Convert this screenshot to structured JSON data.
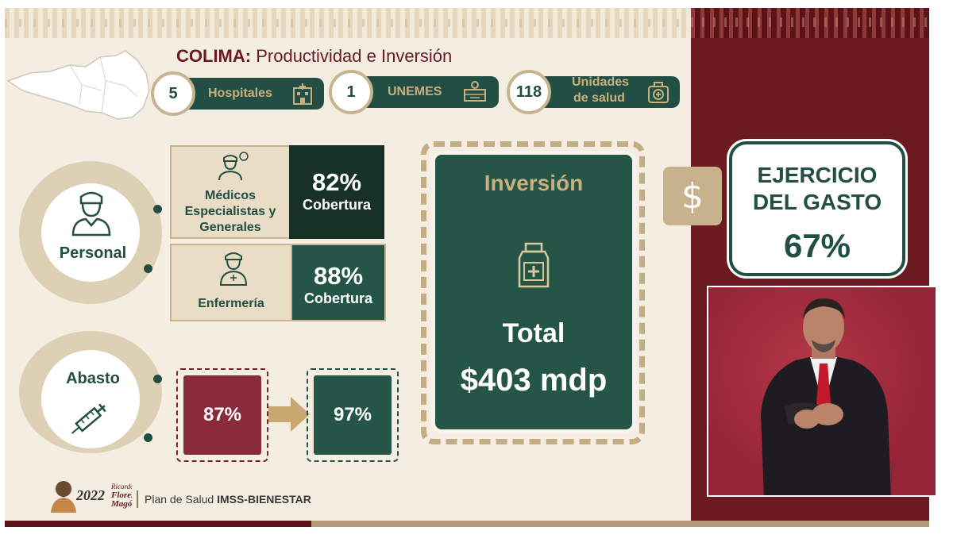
{
  "title": {
    "state": "COLIMA:",
    "subtitle": "Productividad e Inversión"
  },
  "stats": [
    {
      "value": "5",
      "label": "Hospitales",
      "icon": "hospital-icon"
    },
    {
      "value": "1",
      "label": "UNEMES",
      "icon": "unemes-icon"
    },
    {
      "value": "118",
      "label_line1": "Unidades",
      "label_line2": "de salud",
      "icon": "health-unit-icon"
    }
  ],
  "personal": {
    "label": "Personal",
    "medicos": {
      "label_line1": "Médicos",
      "label_line2": "Especialistas y",
      "label_line3": "Generales",
      "pct": "82%",
      "cobertura": "Cobertura"
    },
    "enfermeria": {
      "label": "Enfermería",
      "pct": "88%",
      "cobertura": "Cobertura"
    }
  },
  "abasto": {
    "label": "Abasto",
    "before": "87%",
    "after": "97%"
  },
  "inversion": {
    "title": "Inversión",
    "total_label": "Total",
    "amount": "$403 mdp"
  },
  "gasto": {
    "symbol": "$",
    "line1": "EJERCICIO",
    "line2": "DEL GASTO",
    "pct": "67%"
  },
  "footer": {
    "logo_year": "2022",
    "logo_name_line1": "Ricardo",
    "logo_name_line2": "Flores",
    "logo_name_line3": "Magón",
    "text_prefix": "Plan de Salud",
    "text_bold": "IMSS-BIENESTAR"
  },
  "colors": {
    "green": "#234e44",
    "maroon": "#6b1a1f",
    "gold": "#c8b07e",
    "cream": "#f3ede2"
  }
}
